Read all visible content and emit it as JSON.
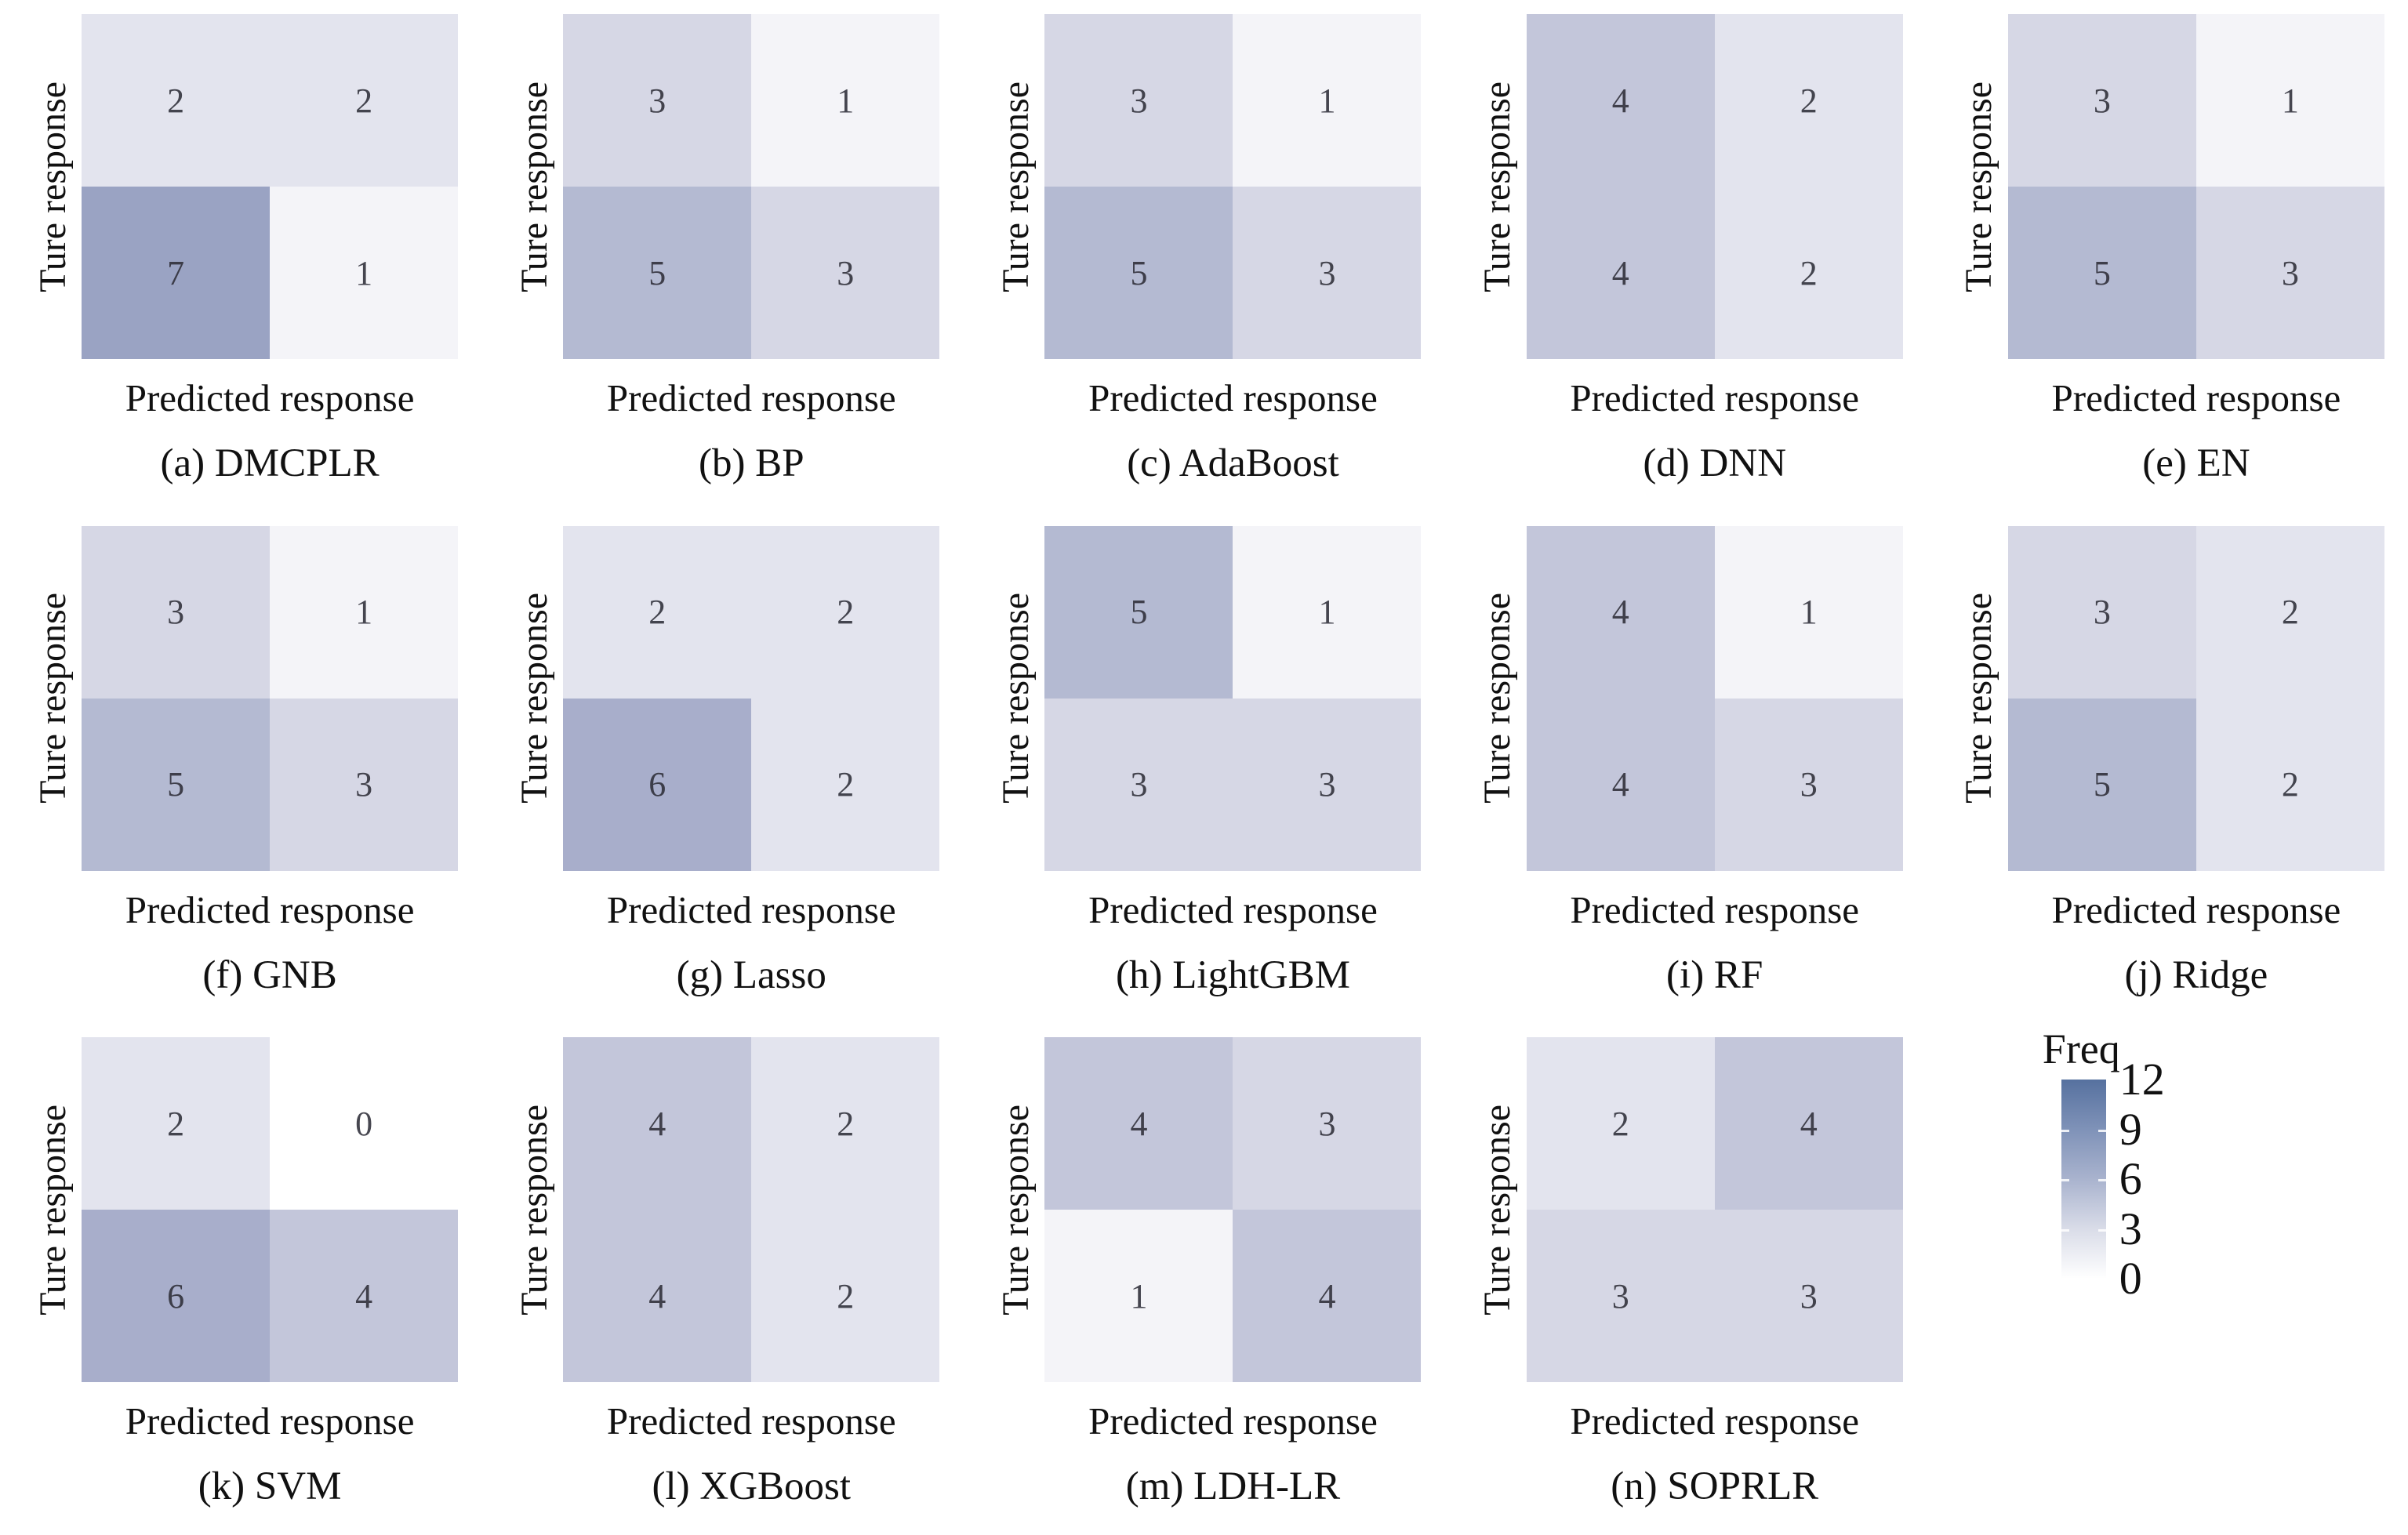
{
  "figure": {
    "background": "#ffffff",
    "number_color": "#2e2e38"
  },
  "axis": {
    "x_label": "Predicted response",
    "y_label": "Ture response"
  },
  "legend": {
    "title": "Freq",
    "ticks": [
      "12",
      "9",
      "6",
      "3",
      "0"
    ],
    "gradient_top_color": "#56719f",
    "gradient_bottom_color": "#ffffff",
    "gradient_stops": [
      "#56719f",
      "#7f92b8",
      "#a9b3ce",
      "#d9dce8",
      "#ffffff"
    ]
  },
  "value_colors": {
    "0": "#ffffff",
    "1": "#f4f4f8",
    "2": "#e3e4ee",
    "3": "#d6d7e5",
    "4": "#c3c6da",
    "5": "#b4bad2",
    "6": "#a8aecb",
    "7": "#9aa3c3"
  },
  "chart_data": {
    "type": "heatmap",
    "description": "2x2 confusion matrices (true response vs predicted response) for 14 models; cell color encodes frequency from 0 (white) to 12 (dark blue).",
    "x_label": "Predicted response",
    "y_label": "Ture response",
    "colorbar": {
      "title": "Freq",
      "min": 0,
      "max": 12,
      "ticks": [
        12,
        9,
        6,
        3,
        0
      ]
    },
    "panels": [
      {
        "id": "a",
        "caption": "(a) DMCPLR",
        "matrix": [
          [
            2,
            2
          ],
          [
            7,
            1
          ]
        ]
      },
      {
        "id": "b",
        "caption": "(b) BP",
        "matrix": [
          [
            3,
            1
          ],
          [
            5,
            3
          ]
        ]
      },
      {
        "id": "c",
        "caption": "(c) AdaBoost",
        "matrix": [
          [
            3,
            1
          ],
          [
            5,
            3
          ]
        ]
      },
      {
        "id": "d",
        "caption": "(d) DNN",
        "matrix": [
          [
            4,
            2
          ],
          [
            4,
            2
          ]
        ]
      },
      {
        "id": "e",
        "caption": "(e) EN",
        "matrix": [
          [
            3,
            1
          ],
          [
            5,
            3
          ]
        ]
      },
      {
        "id": "f",
        "caption": "(f) GNB",
        "matrix": [
          [
            3,
            1
          ],
          [
            5,
            3
          ]
        ]
      },
      {
        "id": "g",
        "caption": "(g) Lasso",
        "matrix": [
          [
            2,
            2
          ],
          [
            6,
            2
          ]
        ]
      },
      {
        "id": "h",
        "caption": "(h) LightGBM",
        "matrix": [
          [
            5,
            1
          ],
          [
            3,
            3
          ]
        ]
      },
      {
        "id": "i",
        "caption": "(i) RF",
        "matrix": [
          [
            4,
            1
          ],
          [
            4,
            3
          ]
        ]
      },
      {
        "id": "j",
        "caption": "(j) Ridge",
        "matrix": [
          [
            3,
            2
          ],
          [
            5,
            2
          ]
        ]
      },
      {
        "id": "k",
        "caption": "(k) SVM",
        "matrix": [
          [
            2,
            0
          ],
          [
            6,
            4
          ]
        ]
      },
      {
        "id": "l",
        "caption": "(l) XGBoost",
        "matrix": [
          [
            4,
            2
          ],
          [
            4,
            2
          ]
        ]
      },
      {
        "id": "m",
        "caption": "(m) LDH-LR",
        "matrix": [
          [
            4,
            3
          ],
          [
            1,
            4
          ]
        ]
      },
      {
        "id": "n",
        "caption": "(n) SOPRLR",
        "matrix": [
          [
            2,
            4
          ],
          [
            3,
            3
          ]
        ]
      }
    ]
  }
}
